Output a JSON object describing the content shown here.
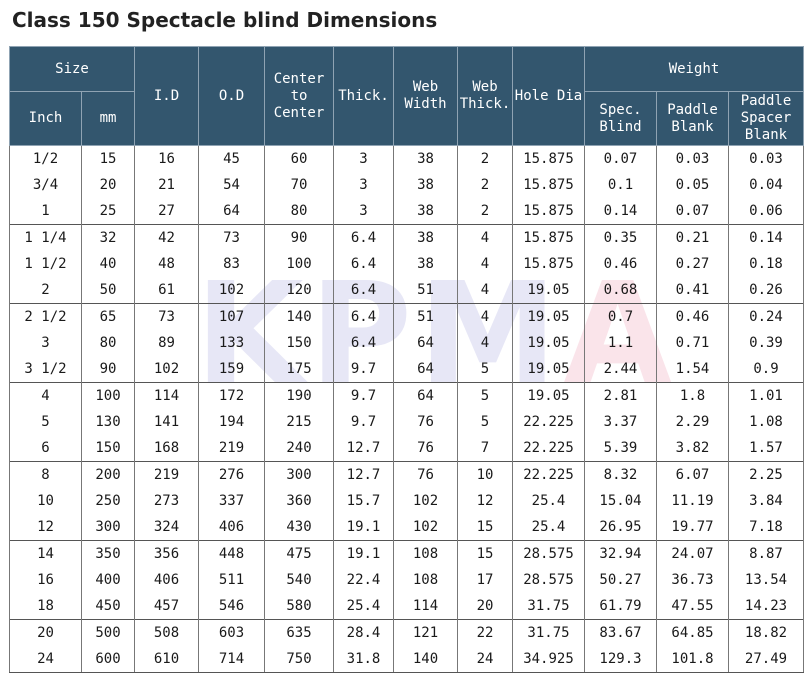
{
  "title": "Class 150 Spectacle blind Dimensions",
  "watermark": {
    "main": "KPM",
    "accent": "A"
  },
  "headers": {
    "size": "Size",
    "inch": "Inch",
    "mm": "mm",
    "id": "I.D",
    "od": "O.D",
    "center": "Center\nto\nCenter",
    "thick": "Thick.",
    "web_width": "Web\nWidth",
    "web_thick": "Web\nThick.",
    "hole_dia": "Hole Dia",
    "weight": "Weight",
    "spec_blind": "Spec.\nBlind",
    "paddle_blank": "Paddle\nBlank",
    "paddle_spacer_blank": "Paddle\nSpacer\nBlank"
  },
  "rows": [
    [
      "1/2",
      "15",
      "16",
      "45",
      "60",
      "3",
      "38",
      "2",
      "15.875",
      "0.07",
      "0.03",
      "0.03"
    ],
    [
      "3/4",
      "20",
      "21",
      "54",
      "70",
      "3",
      "38",
      "2",
      "15.875",
      "0.1",
      "0.05",
      "0.04"
    ],
    [
      "1",
      "25",
      "27",
      "64",
      "80",
      "3",
      "38",
      "2",
      "15.875",
      "0.14",
      "0.07",
      "0.06"
    ],
    [
      "1 1/4",
      "32",
      "42",
      "73",
      "90",
      "6.4",
      "38",
      "4",
      "15.875",
      "0.35",
      "0.21",
      "0.14"
    ],
    [
      "1 1/2",
      "40",
      "48",
      "83",
      "100",
      "6.4",
      "38",
      "4",
      "15.875",
      "0.46",
      "0.27",
      "0.18"
    ],
    [
      "2",
      "50",
      "61",
      "102",
      "120",
      "6.4",
      "51",
      "4",
      "19.05",
      "0.68",
      "0.41",
      "0.26"
    ],
    [
      "2 1/2",
      "65",
      "73",
      "107",
      "140",
      "6.4",
      "51",
      "4",
      "19.05",
      "0.7",
      "0.46",
      "0.24"
    ],
    [
      "3",
      "80",
      "89",
      "133",
      "150",
      "6.4",
      "64",
      "4",
      "19.05",
      "1.1",
      "0.71",
      "0.39"
    ],
    [
      "3 1/2",
      "90",
      "102",
      "159",
      "175",
      "9.7",
      "64",
      "5",
      "19.05",
      "2.44",
      "1.54",
      "0.9"
    ],
    [
      "4",
      "100",
      "114",
      "172",
      "190",
      "9.7",
      "64",
      "5",
      "19.05",
      "2.81",
      "1.8",
      "1.01"
    ],
    [
      "5",
      "130",
      "141",
      "194",
      "215",
      "9.7",
      "76",
      "5",
      "22.225",
      "3.37",
      "2.29",
      "1.08"
    ],
    [
      "6",
      "150",
      "168",
      "219",
      "240",
      "12.7",
      "76",
      "7",
      "22.225",
      "5.39",
      "3.82",
      "1.57"
    ],
    [
      "8",
      "200",
      "219",
      "276",
      "300",
      "12.7",
      "76",
      "10",
      "22.225",
      "8.32",
      "6.07",
      "2.25"
    ],
    [
      "10",
      "250",
      "273",
      "337",
      "360",
      "15.7",
      "102",
      "12",
      "25.4",
      "15.04",
      "11.19",
      "3.84"
    ],
    [
      "12",
      "300",
      "324",
      "406",
      "430",
      "19.1",
      "102",
      "15",
      "25.4",
      "26.95",
      "19.77",
      "7.18"
    ],
    [
      "14",
      "350",
      "356",
      "448",
      "475",
      "19.1",
      "108",
      "15",
      "28.575",
      "32.94",
      "24.07",
      "8.87"
    ],
    [
      "16",
      "400",
      "406",
      "511",
      "540",
      "22.4",
      "108",
      "17",
      "28.575",
      "50.27",
      "36.73",
      "13.54"
    ],
    [
      "18",
      "450",
      "457",
      "546",
      "580",
      "25.4",
      "114",
      "20",
      "31.75",
      "61.79",
      "47.55",
      "14.23"
    ],
    [
      "20",
      "500",
      "508",
      "603",
      "635",
      "28.4",
      "121",
      "22",
      "31.75",
      "83.67",
      "64.85",
      "18.82"
    ],
    [
      "24",
      "600",
      "610",
      "714",
      "750",
      "31.8",
      "140",
      "24",
      "34.925",
      "129.3",
      "101.8",
      "27.49"
    ]
  ]
}
